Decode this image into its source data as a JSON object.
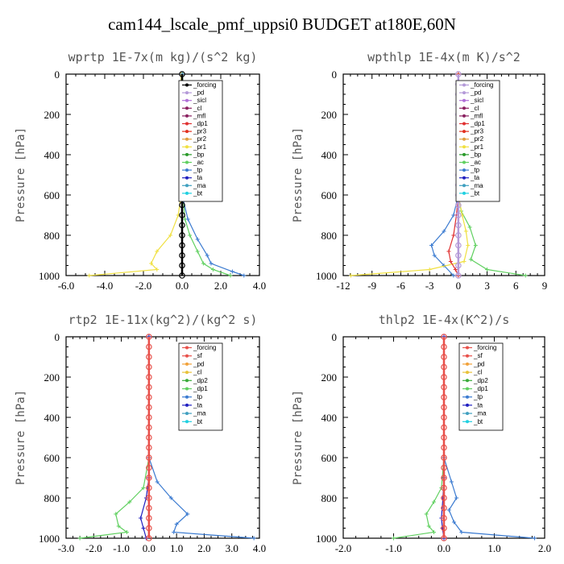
{
  "title": "cam144_lscale_pmf_uppsi0  BUDGET at180E,60N",
  "colors": {
    "forcing": "#000000",
    "forcing2": "#e8504a",
    "sf": "#e8504a",
    "pd": "#f2a23a",
    "sicl": "#b070d8",
    "cl": "#e8c23a",
    "mfl": "#8a2060",
    "dp1": "#e03030",
    "dp2": "#3aaa3a",
    "pr3": "#e23020",
    "pr2": "#e0a040",
    "pr1": "#f0e040",
    "bp": "#2a9a2a",
    "ac": "#60d060",
    "tp": "#3a7ad0",
    "ta": "#2020c0",
    "ma": "#40a0c0",
    "bt": "#20d0e0",
    "purple": "#b49ad8"
  },
  "chart_data": [
    {
      "type": "line",
      "title": "wprtp  1E-7x(m kg)/(s^2 kg)",
      "ylabel": "Pressure [hPa]",
      "xlim": [
        -6.0,
        4.0
      ],
      "xticks": [
        "-6.0",
        "-4.0",
        "-2.0",
        "0.0",
        "2.0",
        "4.0"
      ],
      "ylim": [
        0,
        1000
      ],
      "yticks": [
        "0",
        "200",
        "400",
        "600",
        "800",
        "1000"
      ],
      "legend": [
        "_forcing",
        "_pd",
        "_sicl",
        "_cl",
        "_mfl",
        "_dp1",
        "_pr3",
        "_pr2",
        "_pr1",
        "_bp",
        "_ac",
        "_tp",
        "_ta",
        "_ma",
        "_bt"
      ],
      "legend_colors": [
        "forcing",
        "purple",
        "sicl",
        "mfl",
        "mfl",
        "dp1",
        "pr3",
        "pr2",
        "pr1",
        "bp",
        "ac",
        "tp",
        "ta",
        "ma",
        "bt"
      ],
      "series": [
        {
          "name": "_pr1",
          "color": "pr1",
          "x": [
            -0.05,
            -0.05,
            -0.2,
            -0.6,
            -1.3,
            -1.6,
            -1.3,
            -4.8
          ],
          "y": [
            0,
            600,
            700,
            800,
            880,
            940,
            970,
            1000
          ]
        },
        {
          "name": "_ac",
          "color": "ac",
          "x": [
            0.03,
            0.05,
            0.15,
            0.4,
            0.8,
            1.1,
            1.6,
            2.5
          ],
          "y": [
            0,
            600,
            720,
            800,
            880,
            940,
            970,
            1000
          ]
        },
        {
          "name": "_tp",
          "color": "tp",
          "x": [
            0.0,
            0.0,
            0.3,
            0.8,
            1.3,
            1.5,
            2.6,
            3.2
          ],
          "y": [
            0,
            600,
            720,
            820,
            900,
            940,
            980,
            1000
          ]
        },
        {
          "name": "_forcing",
          "color": "forcing",
          "x": [
            0,
            0,
            0,
            0,
            0,
            0,
            0,
            0,
            0,
            0,
            0,
            0,
            0,
            0,
            0,
            0,
            0,
            0,
            0,
            0,
            0
          ],
          "y": [
            0,
            50,
            100,
            150,
            200,
            250,
            300,
            350,
            400,
            450,
            500,
            550,
            600,
            650,
            700,
            750,
            800,
            850,
            900,
            950,
            1000
          ]
        }
      ]
    },
    {
      "type": "line",
      "title": "wpthlp  1E-4x(m K)/s^2",
      "ylabel": "Pressure [hPa]",
      "xlim": [
        -12,
        9
      ],
      "xticks": [
        "-12",
        "-9",
        "-6",
        "-3",
        "0",
        "3",
        "6",
        "9"
      ],
      "ylim": [
        0,
        1000
      ],
      "yticks": [
        "0",
        "200",
        "400",
        "600",
        "800",
        "1000"
      ],
      "legend": [
        "_forcing",
        "_pd",
        "_sicl",
        "_cl",
        "_mfl",
        "_dp1",
        "_pr3",
        "_pr2",
        "_pr1",
        "_bp",
        "_ac",
        "_tp",
        "_ta",
        "_ma",
        "_bt"
      ],
      "legend_colors": [
        "purple",
        "purple",
        "sicl",
        "mfl",
        "mfl",
        "dp1",
        "pr3",
        "pr2",
        "pr1",
        "bp",
        "ac",
        "tp",
        "ta",
        "ma",
        "bt"
      ],
      "series": [
        {
          "name": "_tp",
          "color": "tp",
          "x": [
            0,
            0,
            -0.5,
            -1.5,
            -2.8,
            -2.5,
            -1.5,
            -0.5
          ],
          "y": [
            0,
            600,
            700,
            780,
            850,
            900,
            950,
            1000
          ]
        },
        {
          "name": "_ac",
          "color": "ac",
          "x": [
            0,
            0,
            0.3,
            1.2,
            1.8,
            1.3,
            3.0,
            7.0
          ],
          "y": [
            0,
            600,
            680,
            760,
            850,
            920,
            970,
            1000
          ]
        },
        {
          "name": "_pr1",
          "color": "pr1",
          "x": [
            0,
            0,
            0.4,
            0.8,
            1.0,
            0.6,
            -3.0,
            -11.2
          ],
          "y": [
            0,
            600,
            700,
            780,
            850,
            930,
            970,
            1000
          ]
        },
        {
          "name": "_dp1",
          "color": "dp1",
          "x": [
            0,
            0,
            -0.2,
            -0.5,
            -1.0,
            -0.8,
            -0.3,
            0.0
          ],
          "y": [
            0,
            600,
            700,
            800,
            880,
            930,
            970,
            1000
          ]
        },
        {
          "name": "_forcing",
          "color": "purple",
          "x": [
            0,
            0,
            0,
            0,
            0,
            0,
            0,
            0,
            0,
            0,
            0,
            0,
            0,
            0,
            0,
            0,
            0,
            0,
            0,
            0,
            0
          ],
          "y": [
            0,
            50,
            100,
            150,
            200,
            250,
            300,
            350,
            400,
            450,
            500,
            550,
            600,
            650,
            700,
            750,
            800,
            850,
            900,
            950,
            1000
          ]
        }
      ]
    },
    {
      "type": "line",
      "title": "rtp2  1E-11x(kg^2)/(kg^2 s)",
      "ylabel": "Pressure [hPa]",
      "xlim": [
        -3.0,
        4.0
      ],
      "xticks": [
        "-3.0",
        "-2.0",
        "-1.0",
        "0.0",
        "1.0",
        "2.0",
        "3.0",
        "4.0"
      ],
      "ylim": [
        0,
        1000
      ],
      "yticks": [
        "0",
        "200",
        "400",
        "600",
        "800",
        "1000"
      ],
      "legend": [
        "_forcing",
        "_sf",
        "_pd",
        "_cl",
        "_dp2",
        "_dp1",
        "_tp",
        "_ta",
        "_ma",
        "_bt"
      ],
      "legend_colors": [
        "forcing2",
        "sf",
        "pd",
        "cl",
        "dp2",
        "ac",
        "tp",
        "ta",
        "ma",
        "bt"
      ],
      "series": [
        {
          "name": "_dp2",
          "color": "ac",
          "x": [
            0.0,
            0.0,
            -0.2,
            -0.7,
            -1.2,
            -1.1,
            -0.8,
            -2.5
          ],
          "y": [
            0,
            600,
            750,
            820,
            880,
            940,
            970,
            1000
          ]
        },
        {
          "name": "_tp",
          "color": "tp",
          "x": [
            0.0,
            0.0,
            0.3,
            0.8,
            1.4,
            1.0,
            0.9,
            3.8
          ],
          "y": [
            0,
            600,
            720,
            800,
            880,
            930,
            970,
            1000
          ]
        },
        {
          "name": "_ta",
          "color": "ta",
          "x": [
            0.0,
            0.0,
            -0.1,
            -0.3,
            -0.2,
            -0.1
          ],
          "y": [
            0,
            700,
            800,
            900,
            950,
            1000
          ]
        },
        {
          "name": "_forcing",
          "color": "forcing2",
          "x": [
            0,
            0,
            0,
            0,
            0,
            0,
            0,
            0,
            0,
            0,
            0,
            0,
            0,
            0,
            0,
            0,
            0,
            0,
            0,
            0,
            0
          ],
          "y": [
            0,
            50,
            100,
            150,
            200,
            250,
            300,
            350,
            400,
            450,
            500,
            550,
            600,
            650,
            700,
            750,
            800,
            850,
            900,
            950,
            1000
          ]
        }
      ]
    },
    {
      "type": "line",
      "title": "thlp2  1E-4x(K^2)/s",
      "ylabel": "Pressure [hPa]",
      "xlim": [
        -2.0,
        2.0
      ],
      "xticks": [
        "-2.0",
        "-1.0",
        "0.0",
        "1.0",
        "2.0"
      ],
      "ylim": [
        0,
        1000
      ],
      "yticks": [
        "0",
        "200",
        "400",
        "600",
        "800",
        "1000"
      ],
      "legend": [
        "_forcing",
        "_sf",
        "_pd",
        "_cl",
        "_dp2",
        "_dp1",
        "_tp",
        "_ta",
        "_ma",
        "_bt"
      ],
      "legend_colors": [
        "forcing2",
        "sf",
        "pd",
        "cl",
        "dp2",
        "ac",
        "tp",
        "ta",
        "ma",
        "bt"
      ],
      "series": [
        {
          "name": "_dp2",
          "color": "ac",
          "x": [
            0.0,
            0.0,
            -0.05,
            -0.2,
            -0.35,
            -0.3,
            -0.2,
            -1.0
          ],
          "y": [
            0,
            600,
            750,
            820,
            880,
            940,
            970,
            1000
          ]
        },
        {
          "name": "_tp",
          "color": "tp",
          "x": [
            0.0,
            0.0,
            0.15,
            0.25,
            0.1,
            0.2,
            0.35,
            1.8
          ],
          "y": [
            0,
            600,
            720,
            800,
            860,
            920,
            970,
            1000
          ]
        },
        {
          "name": "_ta",
          "color": "ta",
          "x": [
            0.0,
            0.0,
            -0.02,
            -0.05,
            -0.03,
            0.0
          ],
          "y": [
            0,
            700,
            800,
            900,
            950,
            1000
          ]
        },
        {
          "name": "_forcing",
          "color": "forcing2",
          "x": [
            0,
            0,
            0,
            0,
            0,
            0,
            0,
            0,
            0,
            0,
            0,
            0,
            0,
            0,
            0,
            0,
            0,
            0,
            0,
            0,
            0
          ],
          "y": [
            0,
            50,
            100,
            150,
            200,
            250,
            300,
            350,
            400,
            450,
            500,
            550,
            600,
            650,
            700,
            750,
            800,
            850,
            900,
            950,
            1000
          ]
        }
      ]
    }
  ]
}
